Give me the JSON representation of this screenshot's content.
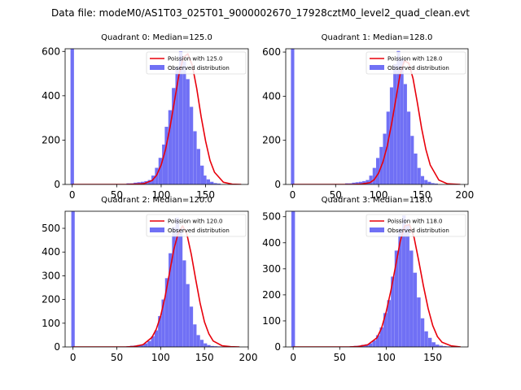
{
  "figure": {
    "suptitle": "Data file: modeM0/AS1T03_025T01_9000002670_17928cztM0_level2_quad_clean.evt",
    "colors": {
      "bar": "#7070f5",
      "line": "#e8000b",
      "axis": "#000000"
    }
  },
  "chart_data": [
    {
      "type": "bar",
      "title": "Quadrant 0: Median=125.0",
      "median": 125.0,
      "xlim": [
        -8,
        198
      ],
      "ylim": [
        0,
        612
      ],
      "xticks": [
        0,
        50,
        100,
        150
      ],
      "yticks": [
        0,
        200,
        400,
        600
      ],
      "bin_width": 3.9,
      "zero_bin": 612,
      "hist_x": [
        63,
        67,
        71,
        75,
        79,
        83,
        87,
        91,
        95,
        99,
        103,
        106,
        110,
        114,
        118,
        122,
        126,
        130,
        134,
        138,
        142,
        146,
        149,
        153,
        157,
        161,
        165
      ],
      "hist_y": [
        5,
        5,
        8,
        10,
        12,
        15,
        20,
        40,
        75,
        120,
        180,
        260,
        335,
        435,
        530,
        600,
        555,
        475,
        350,
        240,
        160,
        85,
        40,
        23,
        12,
        6,
        4
      ],
      "poisson_x": [
        0,
        60,
        70,
        80,
        90,
        95,
        100,
        105,
        110,
        115,
        120,
        125,
        130,
        135,
        140,
        145,
        150,
        155,
        160,
        170,
        180,
        190
      ],
      "poisson_y": [
        0,
        0,
        1,
        3,
        18,
        42,
        88,
        158,
        259,
        376,
        494,
        573,
        589,
        538,
        432,
        305,
        195,
        108,
        55,
        10,
        1,
        0
      ],
      "legend": {
        "line_label": "Poission with 125.0",
        "bar_label": "Observed distribution"
      }
    },
    {
      "type": "bar",
      "title": "Quadrant 1: Median=128.0",
      "median": 128.0,
      "xlim": [
        -8,
        204
      ],
      "ylim": [
        0,
        615
      ],
      "xticks": [
        0,
        50,
        100,
        150,
        200
      ],
      "yticks": [
        0,
        200,
        400,
        600
      ],
      "bin_width": 3.9,
      "zero_bin": 615,
      "hist_x": [
        63,
        67,
        71,
        75,
        79,
        83,
        87,
        91,
        95,
        99,
        103,
        107,
        111,
        115,
        119,
        123,
        127,
        131,
        135,
        139,
        143,
        147,
        151,
        155,
        159,
        163,
        167
      ],
      "hist_y": [
        5,
        5,
        8,
        10,
        12,
        15,
        20,
        40,
        75,
        120,
        170,
        230,
        330,
        440,
        545,
        605,
        570,
        455,
        330,
        220,
        140,
        75,
        38,
        20,
        12,
        6,
        4
      ],
      "poisson_x": [
        0,
        60,
        70,
        80,
        90,
        95,
        100,
        105,
        110,
        115,
        120,
        125,
        130,
        135,
        140,
        145,
        150,
        155,
        160,
        170,
        180,
        195
      ],
      "poisson_y": [
        0,
        0,
        0,
        2,
        8,
        22,
        52,
        102,
        174,
        274,
        385,
        499,
        560,
        550,
        480,
        370,
        255,
        158,
        88,
        20,
        3,
        0
      ],
      "legend": {
        "line_label": "Poission with 128.0",
        "bar_label": "Observed distribution"
      }
    },
    {
      "type": "bar",
      "title": "Quadrant 2: Median=120.0",
      "median": 120.0,
      "xlim": [
        -9,
        200
      ],
      "ylim": [
        0,
        572
      ],
      "xticks": [
        0,
        50,
        100,
        150,
        200
      ],
      "yticks": [
        0,
        100,
        200,
        300,
        400,
        500
      ],
      "bin_width": 3.9,
      "zero_bin": 572,
      "hist_x": [
        63,
        67,
        71,
        75,
        79,
        83,
        87,
        91,
        95,
        99,
        103,
        107,
        111,
        115,
        119,
        123,
        127,
        131,
        135,
        139,
        143,
        147,
        151,
        155,
        159,
        163,
        167
      ],
      "hist_y": [
        3,
        5,
        6,
        8,
        10,
        15,
        25,
        45,
        70,
        130,
        200,
        290,
        395,
        505,
        545,
        500,
        365,
        265,
        170,
        95,
        50,
        30,
        15,
        8,
        4,
        3,
        2
      ],
      "poisson_x": [
        0,
        60,
        70,
        80,
        90,
        95,
        100,
        105,
        110,
        115,
        120,
        125,
        130,
        135,
        140,
        145,
        150,
        155,
        160,
        170,
        180,
        190
      ],
      "poisson_y": [
        0,
        0,
        2,
        10,
        40,
        75,
        130,
        210,
        310,
        410,
        480,
        510,
        475,
        390,
        285,
        185,
        105,
        55,
        25,
        5,
        1,
        0
      ],
      "legend": {
        "line_label": "Poission with 120.0",
        "bar_label": "Observed distribution"
      }
    },
    {
      "type": "bar",
      "title": "Quadrant 3: Median=118.0",
      "median": 118.0,
      "xlim": [
        -8,
        188
      ],
      "ylim": [
        0,
        521
      ],
      "xticks": [
        0,
        50,
        100,
        150
      ],
      "yticks": [
        0,
        100,
        200,
        300,
        400,
        500
      ],
      "bin_width": 3.9,
      "zero_bin": 521,
      "hist_x": [
        63,
        67,
        71,
        75,
        79,
        83,
        87,
        91,
        95,
        99,
        103,
        107,
        111,
        115,
        119,
        123,
        127,
        131,
        135,
        139,
        143,
        147,
        151,
        155,
        159,
        163,
        167
      ],
      "hist_y": [
        3,
        4,
        5,
        8,
        10,
        14,
        25,
        45,
        75,
        130,
        180,
        270,
        370,
        455,
        505,
        470,
        370,
        285,
        190,
        110,
        60,
        35,
        18,
        9,
        5,
        3,
        2
      ],
      "poisson_x": [
        0,
        60,
        70,
        80,
        90,
        95,
        100,
        105,
        110,
        115,
        120,
        125,
        130,
        135,
        140,
        145,
        150,
        155,
        160,
        170,
        180
      ],
      "poisson_y": [
        0,
        0,
        2,
        8,
        35,
        72,
        135,
        215,
        310,
        405,
        465,
        470,
        420,
        330,
        235,
        148,
        82,
        40,
        18,
        4,
        0
      ],
      "legend": {
        "line_label": "Poission with 118.0",
        "bar_label": "Observed distribution"
      }
    }
  ]
}
